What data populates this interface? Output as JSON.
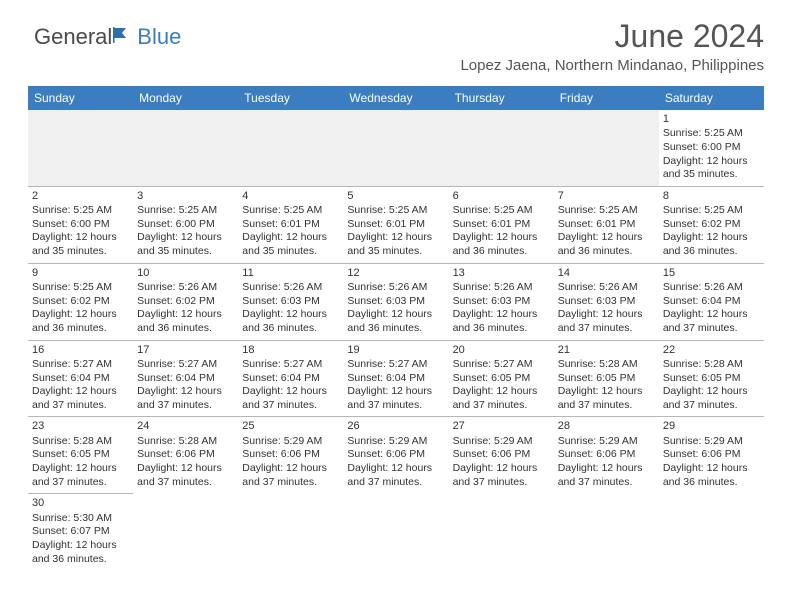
{
  "logo": {
    "text_general": "General",
    "text_blue": "Blue"
  },
  "header": {
    "title": "June 2024",
    "location": "Lopez Jaena, Northern Mindanao, Philippines"
  },
  "colors": {
    "header_bg": "#3a7ec1",
    "header_fg": "#ffffff",
    "grid_line": "#b7b7b7",
    "empty_bg": "#f0f0f0",
    "text": "#333333",
    "logo_gray": "#4a4a4a",
    "logo_blue": "#3a7ec1"
  },
  "typography": {
    "title_fontsize": 32,
    "location_fontsize": 15,
    "dayheader_fontsize": 12,
    "cell_fontsize": 10.5,
    "logo_fontsize": 22
  },
  "day_headers": [
    "Sunday",
    "Monday",
    "Tuesday",
    "Wednesday",
    "Thursday",
    "Friday",
    "Saturday"
  ],
  "weeks": [
    [
      null,
      null,
      null,
      null,
      null,
      null,
      {
        "n": "1",
        "sr": "Sunrise: 5:25 AM",
        "ss": "Sunset: 6:00 PM",
        "d1": "Daylight: 12 hours",
        "d2": "and 35 minutes."
      }
    ],
    [
      {
        "n": "2",
        "sr": "Sunrise: 5:25 AM",
        "ss": "Sunset: 6:00 PM",
        "d1": "Daylight: 12 hours",
        "d2": "and 35 minutes."
      },
      {
        "n": "3",
        "sr": "Sunrise: 5:25 AM",
        "ss": "Sunset: 6:00 PM",
        "d1": "Daylight: 12 hours",
        "d2": "and 35 minutes."
      },
      {
        "n": "4",
        "sr": "Sunrise: 5:25 AM",
        "ss": "Sunset: 6:01 PM",
        "d1": "Daylight: 12 hours",
        "d2": "and 35 minutes."
      },
      {
        "n": "5",
        "sr": "Sunrise: 5:25 AM",
        "ss": "Sunset: 6:01 PM",
        "d1": "Daylight: 12 hours",
        "d2": "and 35 minutes."
      },
      {
        "n": "6",
        "sr": "Sunrise: 5:25 AM",
        "ss": "Sunset: 6:01 PM",
        "d1": "Daylight: 12 hours",
        "d2": "and 36 minutes."
      },
      {
        "n": "7",
        "sr": "Sunrise: 5:25 AM",
        "ss": "Sunset: 6:01 PM",
        "d1": "Daylight: 12 hours",
        "d2": "and 36 minutes."
      },
      {
        "n": "8",
        "sr": "Sunrise: 5:25 AM",
        "ss": "Sunset: 6:02 PM",
        "d1": "Daylight: 12 hours",
        "d2": "and 36 minutes."
      }
    ],
    [
      {
        "n": "9",
        "sr": "Sunrise: 5:25 AM",
        "ss": "Sunset: 6:02 PM",
        "d1": "Daylight: 12 hours",
        "d2": "and 36 minutes."
      },
      {
        "n": "10",
        "sr": "Sunrise: 5:26 AM",
        "ss": "Sunset: 6:02 PM",
        "d1": "Daylight: 12 hours",
        "d2": "and 36 minutes."
      },
      {
        "n": "11",
        "sr": "Sunrise: 5:26 AM",
        "ss": "Sunset: 6:03 PM",
        "d1": "Daylight: 12 hours",
        "d2": "and 36 minutes."
      },
      {
        "n": "12",
        "sr": "Sunrise: 5:26 AM",
        "ss": "Sunset: 6:03 PM",
        "d1": "Daylight: 12 hours",
        "d2": "and 36 minutes."
      },
      {
        "n": "13",
        "sr": "Sunrise: 5:26 AM",
        "ss": "Sunset: 6:03 PM",
        "d1": "Daylight: 12 hours",
        "d2": "and 36 minutes."
      },
      {
        "n": "14",
        "sr": "Sunrise: 5:26 AM",
        "ss": "Sunset: 6:03 PM",
        "d1": "Daylight: 12 hours",
        "d2": "and 37 minutes."
      },
      {
        "n": "15",
        "sr": "Sunrise: 5:26 AM",
        "ss": "Sunset: 6:04 PM",
        "d1": "Daylight: 12 hours",
        "d2": "and 37 minutes."
      }
    ],
    [
      {
        "n": "16",
        "sr": "Sunrise: 5:27 AM",
        "ss": "Sunset: 6:04 PM",
        "d1": "Daylight: 12 hours",
        "d2": "and 37 minutes."
      },
      {
        "n": "17",
        "sr": "Sunrise: 5:27 AM",
        "ss": "Sunset: 6:04 PM",
        "d1": "Daylight: 12 hours",
        "d2": "and 37 minutes."
      },
      {
        "n": "18",
        "sr": "Sunrise: 5:27 AM",
        "ss": "Sunset: 6:04 PM",
        "d1": "Daylight: 12 hours",
        "d2": "and 37 minutes."
      },
      {
        "n": "19",
        "sr": "Sunrise: 5:27 AM",
        "ss": "Sunset: 6:04 PM",
        "d1": "Daylight: 12 hours",
        "d2": "and 37 minutes."
      },
      {
        "n": "20",
        "sr": "Sunrise: 5:27 AM",
        "ss": "Sunset: 6:05 PM",
        "d1": "Daylight: 12 hours",
        "d2": "and 37 minutes."
      },
      {
        "n": "21",
        "sr": "Sunrise: 5:28 AM",
        "ss": "Sunset: 6:05 PM",
        "d1": "Daylight: 12 hours",
        "d2": "and 37 minutes."
      },
      {
        "n": "22",
        "sr": "Sunrise: 5:28 AM",
        "ss": "Sunset: 6:05 PM",
        "d1": "Daylight: 12 hours",
        "d2": "and 37 minutes."
      }
    ],
    [
      {
        "n": "23",
        "sr": "Sunrise: 5:28 AM",
        "ss": "Sunset: 6:05 PM",
        "d1": "Daylight: 12 hours",
        "d2": "and 37 minutes."
      },
      {
        "n": "24",
        "sr": "Sunrise: 5:28 AM",
        "ss": "Sunset: 6:06 PM",
        "d1": "Daylight: 12 hours",
        "d2": "and 37 minutes."
      },
      {
        "n": "25",
        "sr": "Sunrise: 5:29 AM",
        "ss": "Sunset: 6:06 PM",
        "d1": "Daylight: 12 hours",
        "d2": "and 37 minutes."
      },
      {
        "n": "26",
        "sr": "Sunrise: 5:29 AM",
        "ss": "Sunset: 6:06 PM",
        "d1": "Daylight: 12 hours",
        "d2": "and 37 minutes."
      },
      {
        "n": "27",
        "sr": "Sunrise: 5:29 AM",
        "ss": "Sunset: 6:06 PM",
        "d1": "Daylight: 12 hours",
        "d2": "and 37 minutes."
      },
      {
        "n": "28",
        "sr": "Sunrise: 5:29 AM",
        "ss": "Sunset: 6:06 PM",
        "d1": "Daylight: 12 hours",
        "d2": "and 37 minutes."
      },
      {
        "n": "29",
        "sr": "Sunrise: 5:29 AM",
        "ss": "Sunset: 6:06 PM",
        "d1": "Daylight: 12 hours",
        "d2": "and 36 minutes."
      }
    ],
    [
      {
        "n": "30",
        "sr": "Sunrise: 5:30 AM",
        "ss": "Sunset: 6:07 PM",
        "d1": "Daylight: 12 hours",
        "d2": "and 36 minutes."
      },
      null,
      null,
      null,
      null,
      null,
      null
    ]
  ]
}
